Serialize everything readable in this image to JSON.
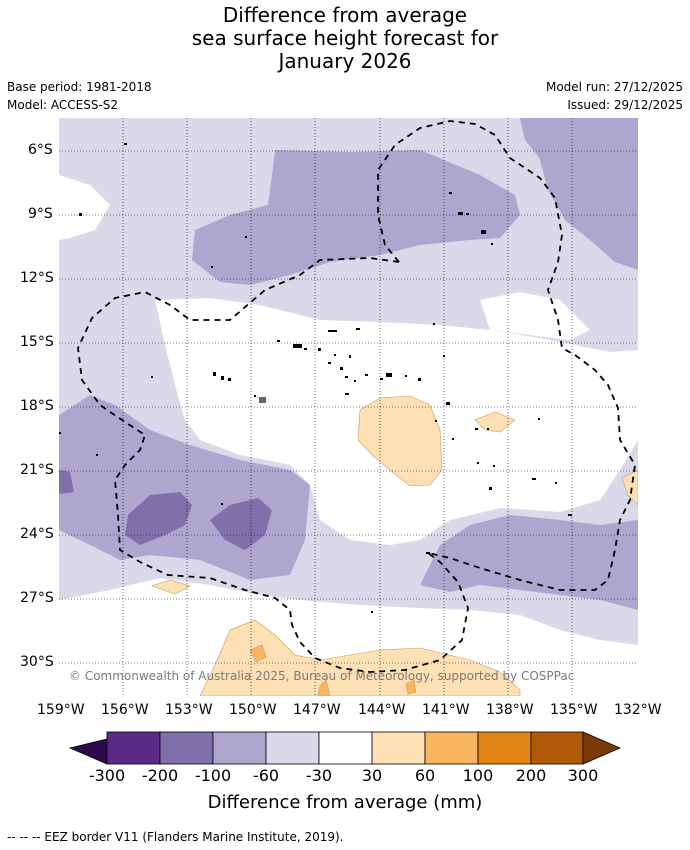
{
  "title_lines": [
    "Difference from average",
    "sea surface height forecast for",
    "January 2026"
  ],
  "meta": {
    "base_period": "Base period: 1981-2018",
    "model": "Model: ACCESS-S2",
    "model_run": "Model run: 27/12/2025",
    "issued": "Issued: 29/12/2025"
  },
  "map": {
    "lat_labels": [
      "6°S",
      "9°S",
      "12°S",
      "15°S",
      "18°S",
      "21°S",
      "24°S",
      "27°S",
      "30°S"
    ],
    "lon_labels": [
      "159°W",
      "156°W",
      "153°W",
      "150°W",
      "147°W",
      "144°W",
      "141°W",
      "138°W",
      "135°W",
      "132°W"
    ],
    "copyright": "© Commonwealth of Australia 2025, Bureau of Meteorology, supported by COSPPac",
    "lon_range": [
      -159,
      -132
    ],
    "lat_range": [
      -31.5,
      -4.5
    ]
  },
  "colorbar": {
    "title": "Difference from average (mm)",
    "labels": [
      "-300",
      "-200",
      "-100",
      "-60",
      "-30",
      "30",
      "60",
      "100",
      "200",
      "300"
    ],
    "colors": {
      "below_-300": "#2d0a4e",
      "-300_-200": "#5b2a86",
      "-200_-100": "#7f6faa",
      "-100_-60": "#aea6cf",
      "-60_-30": "#d9d9ea",
      "-30_30": "#ffffff",
      "30_60": "#fde0b4",
      "60_100": "#f9b65e",
      "100_200": "#e38514",
      "200_300": "#b05a08",
      "above_300": "#7a3a06"
    }
  },
  "footnote": "--  --  -- EEZ border V11 (Flanders Marine Institute, 2019)."
}
